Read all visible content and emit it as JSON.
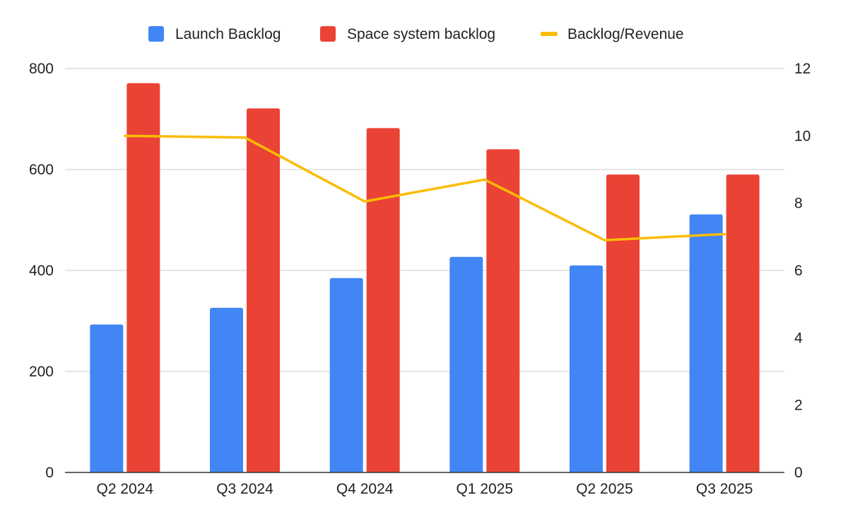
{
  "chart_data": {
    "type": "bar",
    "categories": [
      "Q2 2024",
      "Q3 2024",
      "Q4 2024",
      "Q1 2025",
      "Q2 2025",
      "Q3 2025"
    ],
    "series": [
      {
        "name": "Launch Backlog",
        "type": "bar",
        "axis": "left",
        "color": "#4285F4",
        "values": [
          293,
          326,
          385,
          427,
          410,
          511
        ]
      },
      {
        "name": "Space system backlog",
        "type": "bar",
        "axis": "left",
        "color": "#EA4335",
        "values": [
          771,
          721,
          682,
          640,
          590,
          590
        ]
      },
      {
        "name": "Backlog/Revenue",
        "type": "line",
        "axis": "right",
        "color": "#FBBC04",
        "values": [
          10.0,
          9.95,
          8.05,
          8.7,
          6.9,
          7.08
        ]
      }
    ],
    "y_left": {
      "min": 0,
      "max": 800,
      "ticks": [
        "0",
        "200",
        "400",
        "600",
        "800"
      ]
    },
    "y_right": {
      "min": 0,
      "max": 12,
      "ticks": [
        "0",
        "2",
        "4",
        "6",
        "8",
        "10",
        "12"
      ]
    },
    "grid": true,
    "legend_position": "top-center"
  }
}
